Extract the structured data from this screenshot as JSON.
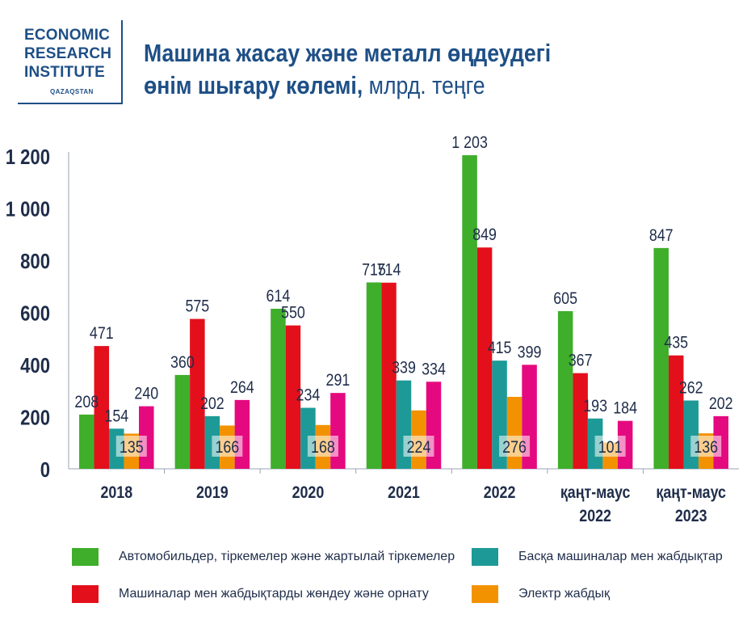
{
  "logo": {
    "line1": "ECONOMIC",
    "line2": "RESEARCH",
    "line3": "INSTITUTE",
    "sub": "QAZAQSTAN"
  },
  "title": {
    "line1": "Машина жасау және металл өңдеудегі",
    "line2": "өнім шығару көлемі,",
    "unit": " млрд. теңге"
  },
  "colors": {
    "green": "#3fae2a",
    "red": "#e3101b",
    "teal": "#1d9a97",
    "orange": "#f39200",
    "magenta": "#e5097f",
    "axis": "#1f2d4a"
  },
  "chart_data": {
    "type": "bar",
    "categories": [
      "2018",
      "2019",
      "2020",
      "2021",
      "2022",
      "қаңт-маус 2022",
      "қаңт-маус 2023"
    ],
    "yticks": [
      "0",
      "200",
      "400",
      "600",
      "800",
      "1 000",
      "1 200"
    ],
    "ylim": [
      0,
      1200
    ],
    "grid": false,
    "legend_position": "bottom",
    "series": [
      {
        "name": "Автомобильдер, тіркемелер және жартылай тіркемелер",
        "color": "#3fae2a",
        "values": [
          208,
          360,
          614,
          715,
          1203,
          605,
          847
        ],
        "labels": [
          "208",
          "360",
          "614",
          "715",
          "1 203",
          "605",
          "847"
        ]
      },
      {
        "name": "Машиналар мен жабдықтарды жөндеу және орнату",
        "color": "#e3101b",
        "values": [
          471,
          575,
          550,
          714,
          849,
          367,
          435
        ],
        "labels": [
          "471",
          "575",
          "550",
          "714",
          "849",
          "367",
          "435"
        ]
      },
      {
        "name": "Басқа машиналар мен жабдықтар",
        "color": "#1d9a97",
        "values": [
          154,
          202,
          234,
          339,
          415,
          193,
          262
        ],
        "labels": [
          "154",
          "202",
          "234",
          "339",
          "415",
          "193",
          "262"
        ]
      },
      {
        "name": "Электр жабдық",
        "color": "#f39200",
        "values": [
          135,
          166,
          168,
          224,
          276,
          101,
          136
        ],
        "labels": [
          "135",
          "166",
          "168",
          "224",
          "276",
          "101",
          "136"
        ]
      },
      {
        "name": "",
        "color": "#e5097f",
        "values": [
          240,
          264,
          291,
          334,
          399,
          184,
          202
        ],
        "labels": [
          "240",
          "264",
          "291",
          "334",
          "399",
          "184",
          "202"
        ]
      }
    ]
  },
  "legend": [
    {
      "label": "Автомобильдер, тіркемелер және жартылай тіркемелер",
      "color": "#3fae2a"
    },
    {
      "label": "Басқа машиналар мен жабдықтар",
      "color": "#1d9a97"
    },
    {
      "label": "Машиналар мен жабдықтарды жөндеу және орнату",
      "color": "#e3101b"
    },
    {
      "label": "Электр жабдық",
      "color": "#f39200"
    }
  ]
}
